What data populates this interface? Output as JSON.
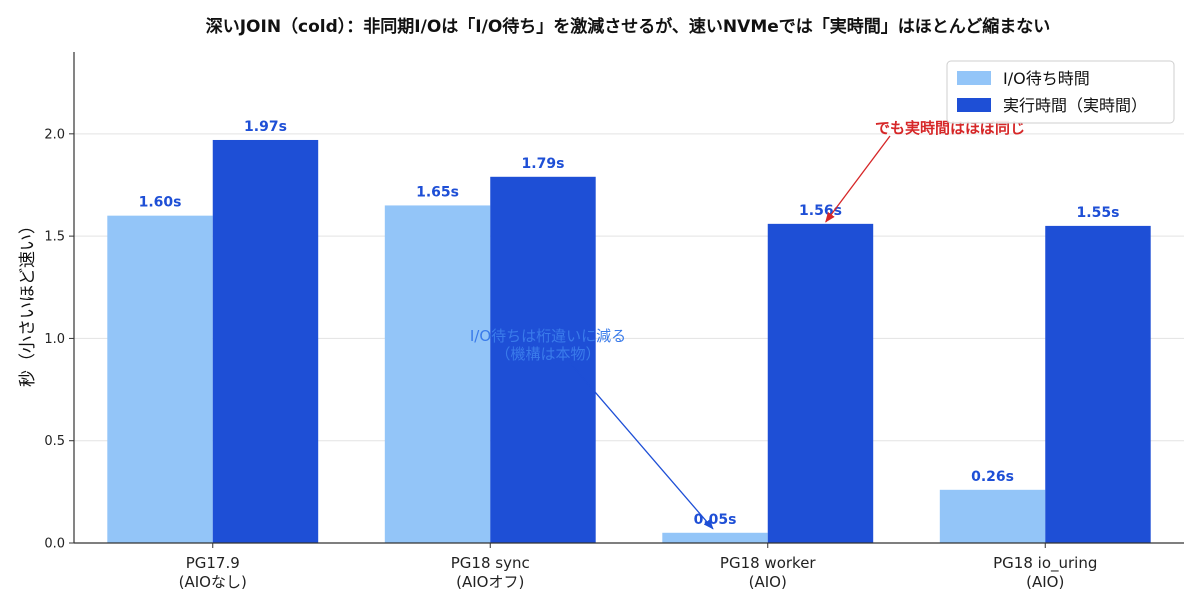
{
  "chart_data": {
    "type": "bar",
    "title": "深いJOIN（cold）：非同期I/Oは「I/O待ち」を激減させるが、速いNVMeでは「実時間」はほとんど縮まない",
    "ylabel": "秒（小さいほど速い）",
    "xlabel": "",
    "categories": [
      [
        "PG17.9",
        "(AIOなし)"
      ],
      [
        "PG18 sync",
        "(AIOオフ)"
      ],
      [
        "PG18 worker",
        "(AIO)"
      ],
      [
        "PG18 io_uring",
        "(AIO)"
      ]
    ],
    "series": [
      {
        "name": "I/O待ち時間",
        "color": "#93c5f8",
        "values": [
          1.6,
          1.65,
          0.05,
          0.26
        ],
        "labels": [
          "1.60s",
          "1.65s",
          "0.05s",
          "0.26s"
        ]
      },
      {
        "name": "実行時間（実時間）",
        "color": "#1e4fd6",
        "values": [
          1.97,
          1.79,
          1.56,
          1.55
        ],
        "labels": [
          "1.97s",
          "1.79s",
          "1.56s",
          "1.55s"
        ]
      }
    ],
    "ylim": [
      0,
      2.4
    ],
    "yticks": [
      0.0,
      0.5,
      1.0,
      1.5,
      2.0
    ],
    "ytick_labels": [
      "0.0",
      "0.5",
      "1.0",
      "1.5",
      "2.0"
    ],
    "grid": "horizontal",
    "legend_position": "top-right",
    "annotations": [
      {
        "text": "でも実時間はほぼ同じ",
        "color": "#d62728",
        "target_category": 2,
        "target_series": 1
      },
      {
        "text": "I/O待ちは桁違いに減る\n（機構は本物）",
        "color": "#3a7bea",
        "target_category": 2,
        "target_series": 0
      }
    ]
  }
}
